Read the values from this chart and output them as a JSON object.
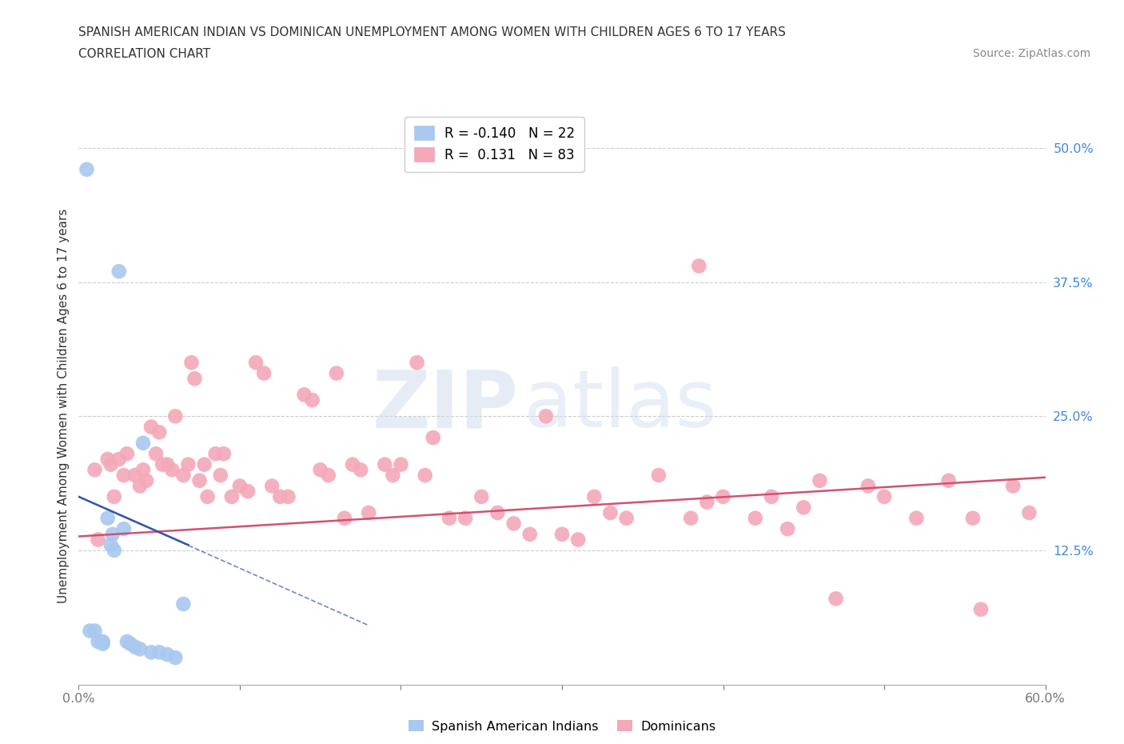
{
  "title_line1": "SPANISH AMERICAN INDIAN VS DOMINICAN UNEMPLOYMENT AMONG WOMEN WITH CHILDREN AGES 6 TO 17 YEARS",
  "title_line2": "CORRELATION CHART",
  "source": "Source: ZipAtlas.com",
  "ylabel": "Unemployment Among Women with Children Ages 6 to 17 years",
  "xlim": [
    0.0,
    0.6
  ],
  "ylim": [
    0.0,
    0.52
  ],
  "ytick_values": [
    0.125,
    0.25,
    0.375,
    0.5
  ],
  "ytick_labels": [
    "12.5%",
    "25.0%",
    "37.5%",
    "50.0%"
  ],
  "grid_color": "#cccccc",
  "background_color": "#ffffff",
  "blue_color": "#a8c8f0",
  "blue_line_color": "#3355aa",
  "pink_color": "#f4a8b8",
  "pink_line_color": "#d45070",
  "legend_r_blue": "-0.140",
  "legend_n_blue": "22",
  "legend_r_pink": " 0.131",
  "legend_n_pink": "83",
  "watermark_zip": "ZIP",
  "watermark_atlas": "atlas",
  "blue_x": [
    0.005,
    0.007,
    0.01,
    0.012,
    0.015,
    0.015,
    0.018,
    0.02,
    0.021,
    0.022,
    0.025,
    0.028,
    0.03,
    0.032,
    0.035,
    0.038,
    0.04,
    0.045,
    0.05,
    0.055,
    0.06,
    0.065
  ],
  "blue_y": [
    0.48,
    0.05,
    0.05,
    0.04,
    0.04,
    0.038,
    0.155,
    0.13,
    0.14,
    0.125,
    0.385,
    0.145,
    0.04,
    0.038,
    0.035,
    0.033,
    0.225,
    0.03,
    0.03,
    0.028,
    0.025,
    0.075
  ],
  "pink_x": [
    0.01,
    0.012,
    0.018,
    0.02,
    0.022,
    0.025,
    0.028,
    0.03,
    0.035,
    0.038,
    0.04,
    0.042,
    0.045,
    0.048,
    0.05,
    0.052,
    0.055,
    0.058,
    0.06,
    0.065,
    0.068,
    0.07,
    0.072,
    0.075,
    0.078,
    0.08,
    0.085,
    0.088,
    0.09,
    0.095,
    0.1,
    0.105,
    0.11,
    0.115,
    0.12,
    0.125,
    0.13,
    0.14,
    0.145,
    0.15,
    0.155,
    0.16,
    0.165,
    0.17,
    0.175,
    0.18,
    0.19,
    0.195,
    0.2,
    0.21,
    0.215,
    0.22,
    0.23,
    0.24,
    0.25,
    0.26,
    0.27,
    0.28,
    0.29,
    0.3,
    0.31,
    0.32,
    0.33,
    0.34,
    0.36,
    0.38,
    0.39,
    0.4,
    0.42,
    0.43,
    0.44,
    0.45,
    0.46,
    0.47,
    0.49,
    0.5,
    0.52,
    0.54,
    0.555,
    0.56,
    0.58,
    0.59,
    0.385
  ],
  "pink_y": [
    0.2,
    0.135,
    0.21,
    0.205,
    0.175,
    0.21,
    0.195,
    0.215,
    0.195,
    0.185,
    0.2,
    0.19,
    0.24,
    0.215,
    0.235,
    0.205,
    0.205,
    0.2,
    0.25,
    0.195,
    0.205,
    0.3,
    0.285,
    0.19,
    0.205,
    0.175,
    0.215,
    0.195,
    0.215,
    0.175,
    0.185,
    0.18,
    0.3,
    0.29,
    0.185,
    0.175,
    0.175,
    0.27,
    0.265,
    0.2,
    0.195,
    0.29,
    0.155,
    0.205,
    0.2,
    0.16,
    0.205,
    0.195,
    0.205,
    0.3,
    0.195,
    0.23,
    0.155,
    0.155,
    0.175,
    0.16,
    0.15,
    0.14,
    0.25,
    0.14,
    0.135,
    0.175,
    0.16,
    0.155,
    0.195,
    0.155,
    0.17,
    0.175,
    0.155,
    0.175,
    0.145,
    0.165,
    0.19,
    0.08,
    0.185,
    0.175,
    0.155,
    0.19,
    0.155,
    0.07,
    0.185,
    0.16,
    0.39
  ],
  "pink_line_x0": 0.0,
  "pink_line_y0": 0.138,
  "pink_line_x1": 0.6,
  "pink_line_y1": 0.193,
  "blue_line_solid_x0": 0.0,
  "blue_line_solid_y0": 0.175,
  "blue_line_solid_x1": 0.068,
  "blue_line_solid_y1": 0.13,
  "blue_line_dash_x0": 0.0,
  "blue_line_dash_y0": 0.175,
  "blue_line_dash_x1": 0.18,
  "blue_line_dash_y1": 0.055
}
